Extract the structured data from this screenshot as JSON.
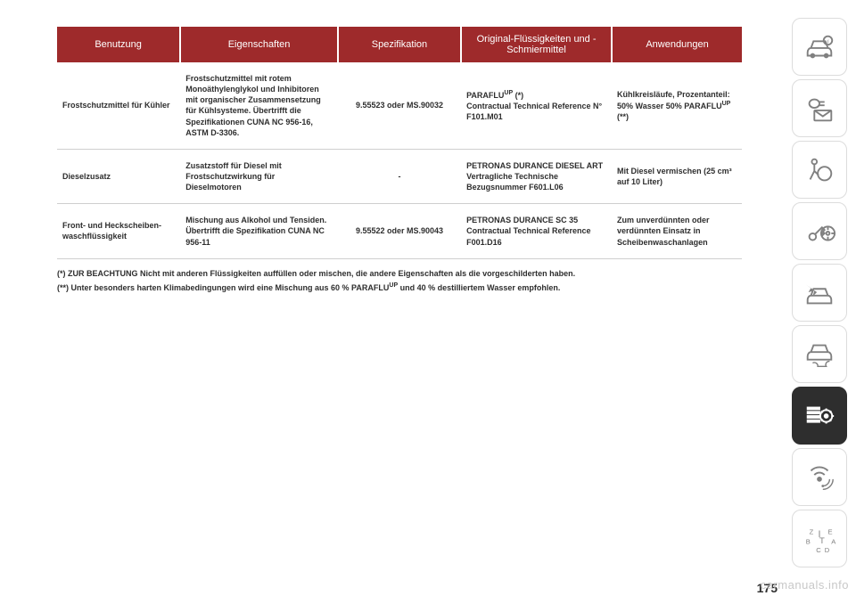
{
  "table": {
    "headers": [
      "Benutzung",
      "Eigenschaften",
      "Spezifikation",
      "Original-Flüssigkeiten und -Schmiermittel",
      "Anwendungen"
    ],
    "col_widths": [
      "18%",
      "23%",
      "18%",
      "22%",
      "19%"
    ],
    "header_bg": "#9e2a2b",
    "header_color": "#ffffff",
    "rows": [
      {
        "c1": "Frostschutzmittel für Kühler",
        "c2": "Frostschutzmittel mit rotem Monoäthylenglykol und Inhibitoren mit organischer Zusammensetzung für Kühlsysteme. Übertrifft die Spezifikationen CUNA NC 956-16, ASTM D-3306.",
        "c3": "9.55523 oder MS.90032",
        "c4": "PARAFLU<sup>UP</sup> (*)\nContractual Technical Reference N° F101.M01",
        "c5": "Kühlkreisläufe, Prozentanteil: 50% Wasser 50% PARAFLU<sup>UP</sup> (**)"
      },
      {
        "c1": "Dieselzusatz",
        "c2": "Zusatzstoff für Diesel mit Frostschutzwirkung für Dieselmotoren",
        "c3": "-",
        "c4": "PETRONAS DURANCE DIESEL ART\nVertragliche Technische Bezugsnummer F601.L06",
        "c5": "Mit Diesel vermischen (25 cm³ auf 10 Liter)"
      },
      {
        "c1": "Front- und Heckscheiben-waschflüssigkeit",
        "c2": "Mischung aus Alkohol und Tensiden. Übertrifft die Spezifikation CUNA NC 956-11",
        "c3": "9.55522 oder MS.90043",
        "c4": "PETRONAS DURANCE SC 35\nContractual Technical Reference F001.D16",
        "c5": "Zum unverdünnten oder verdünnten Einsatz in Scheibenwaschanlagen"
      }
    ]
  },
  "footnotes": [
    "(*) ZUR BEACHTUNG Nicht mit anderen Flüssigkeiten auffüllen oder mischen, die andere Eigenschaften als die vorgeschilderten haben.",
    "(**) Unter besonders harten Klimabedingungen wird eine Mischung aus 60 % PARAFLU<sup>UP</sup> und 40 % destilliertem Wasser empfohlen."
  ],
  "sidebar_icons": [
    "car-info",
    "light-envelope",
    "airbag",
    "key-wheel",
    "car-crash",
    "car-wrench",
    "settings",
    "radio",
    "alphabet"
  ],
  "active_sidebar_index": 6,
  "pagenum": "175",
  "watermark": "carmanuals.info"
}
